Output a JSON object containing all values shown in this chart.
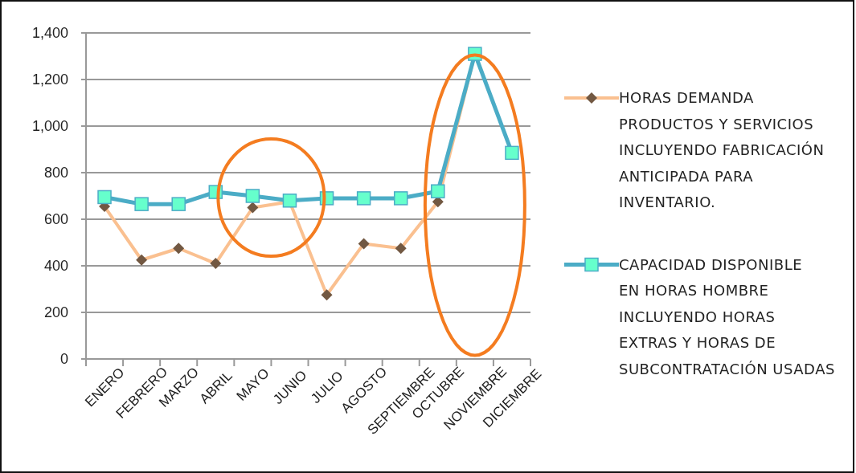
{
  "chart_data": {
    "type": "line",
    "categories": [
      "ENERO",
      "FEBRERO",
      "MARZO",
      "ABRIL",
      "MAYO",
      "JUNIO",
      "JULIO",
      "AGOSTO",
      "SEPTIEMBRE",
      "OCTUBRE",
      "NOVIEMBRE",
      "DICIEMBRE"
    ],
    "series": [
      {
        "name": "HORAS DEMANDA PRODUCTOS Y SERVICIOS INCLUYENDO FABRICACIÓN ANTICIPADA PARA INVENTARIO.",
        "color": "#fac090",
        "marker": "diamond",
        "values": [
          655,
          425,
          475,
          410,
          650,
          675,
          275,
          495,
          475,
          675,
          1310,
          null
        ]
      },
      {
        "name": "CAPACIDAD DISPONIBLE EN HORAS HOMBRE INCLUYENDO HORAS EXTRAS Y HORAS DE SUBCONTRATACIÓN USADAS",
        "color": "#4bacc6",
        "marker": "square",
        "values": [
          695,
          665,
          665,
          717,
          700,
          680,
          690,
          690,
          690,
          720,
          1310,
          885
        ]
      }
    ],
    "ylim": [
      0,
      1400
    ],
    "yticks": [
      0,
      {
        "value": 200,
        "label": "200"
      },
      {
        "value": 400,
        "label": "400"
      },
      {
        "value": 600,
        "label": "600"
      },
      {
        "value": 800,
        "label": "800"
      },
      {
        "value": 1000,
        "label": "1,000"
      },
      {
        "value": 1200,
        "label": "1,200"
      },
      {
        "value": 1400,
        "label": "1,400"
      }
    ],
    "grid": "y",
    "legend": "right"
  }
}
